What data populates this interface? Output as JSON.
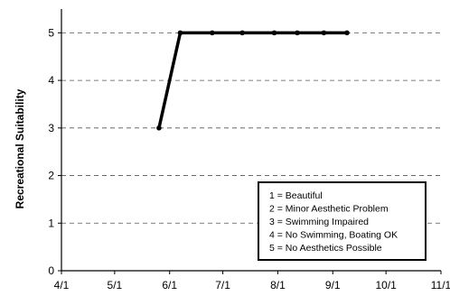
{
  "chart_data": {
    "type": "line",
    "title": "",
    "xlabel": "",
    "ylabel": "Recreational Suitability",
    "x_tick_labels": [
      "4/1",
      "5/1",
      "6/1",
      "7/1",
      "8/1",
      "9/1",
      "10/1",
      "11/1"
    ],
    "x_range": [
      "4/1",
      "11/1"
    ],
    "y_tick_labels": [
      "0",
      "1",
      "2",
      "3",
      "4",
      "5"
    ],
    "ylim": [
      0,
      5.5
    ],
    "grid": "horizontal dashed",
    "legend_position": "bottom-right",
    "legend_entries": [
      "1 = Beautiful",
      "2 = Minor Aesthetic Problem",
      "3 = Swimming Impaired",
      "4 = No Swimming, Boating OK",
      "5 = No Aesthetics Possible"
    ],
    "series": [
      {
        "color": "#000000",
        "points": [
          {
            "x": "5/26",
            "y": 3
          },
          {
            "x": "6/7",
            "y": 5
          },
          {
            "x": "6/25",
            "y": 5
          },
          {
            "x": "7/12",
            "y": 5
          },
          {
            "x": "7/30",
            "y": 5
          },
          {
            "x": "8/12",
            "y": 5
          },
          {
            "x": "8/27",
            "y": 5
          },
          {
            "x": "9/9",
            "y": 5
          }
        ]
      }
    ]
  }
}
